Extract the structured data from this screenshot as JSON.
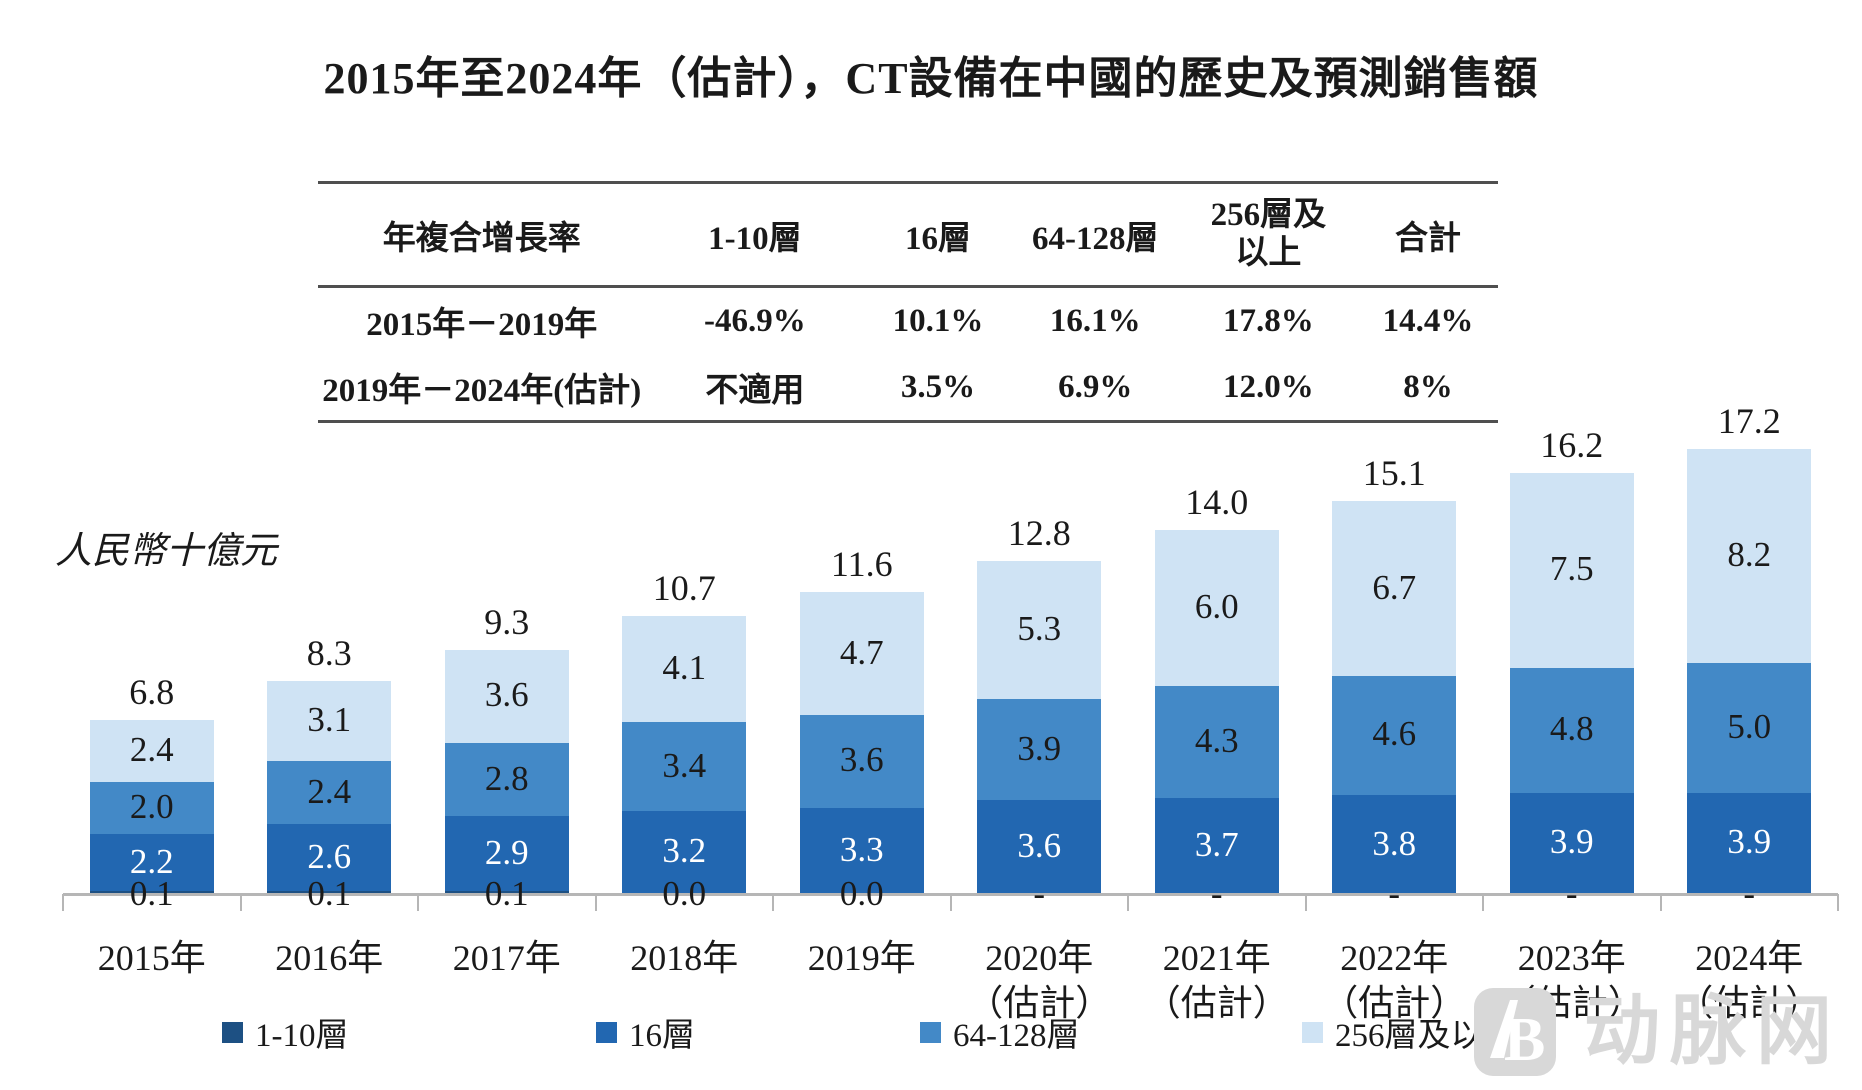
{
  "title": "2015年至2024年（估計），CT設備在中國的歷史及預測銷售額",
  "table": {
    "headers": [
      "年複合增長率",
      "1-10層",
      "16層",
      "64-128層",
      "256層及以上",
      "合計"
    ],
    "rows": [
      {
        "label": "2015年－2019年",
        "values": [
          "-46.9%",
          "10.1%",
          "16.1%",
          "17.8%",
          "14.4%"
        ]
      },
      {
        "label": "2019年－2024年(估計)",
        "values": [
          "不適用",
          "3.5%",
          "6.9%",
          "12.0%",
          "8%"
        ]
      }
    ]
  },
  "y_axis_label": "人民幣十億元",
  "chart_data": {
    "type": "bar",
    "stacked": true,
    "title": "2015年至2024年（估計），CT設備在中國的歷史及預測銷售額",
    "ylabel": "人民幣十億元",
    "ylim": [
      0,
      18
    ],
    "grid": false,
    "legend_position": "bottom",
    "categories": [
      "2015年",
      "2016年",
      "2017年",
      "2018年",
      "2019年",
      "2020年\n（估計）",
      "2021年\n（估計）",
      "2022年\n（估計）",
      "2023年\n（估計）",
      "2024年\n（估計）"
    ],
    "series": [
      {
        "name": "1-10層",
        "color": "#1d5083",
        "values": [
          0.1,
          0.1,
          0.1,
          0.0,
          0.0,
          null,
          null,
          null,
          null,
          null
        ],
        "labels": [
          "0.1",
          "0.1",
          "0.1",
          "0.0",
          "0.0",
          "-",
          "-",
          "-",
          "-",
          "-"
        ]
      },
      {
        "name": "16層",
        "color": "#2267b1",
        "values": [
          2.2,
          2.6,
          2.9,
          3.2,
          3.3,
          3.6,
          3.7,
          3.8,
          3.9,
          3.9
        ]
      },
      {
        "name": "64-128層",
        "color": "#4389c7",
        "values": [
          2.0,
          2.4,
          2.8,
          3.4,
          3.6,
          3.9,
          4.3,
          4.6,
          4.8,
          5.0
        ]
      },
      {
        "name": "256層及以上",
        "color": "#cfe3f4",
        "values": [
          2.4,
          3.1,
          3.6,
          4.1,
          4.7,
          5.3,
          6.0,
          6.7,
          7.5,
          8.2
        ]
      }
    ],
    "totals": [
      6.8,
      8.3,
      9.3,
      10.7,
      11.6,
      12.8,
      14.0,
      15.1,
      16.2,
      17.2
    ]
  },
  "colors": {
    "axis": "#b6b6b6",
    "table_line": "#4f4f4f",
    "text": "#1a1a1a",
    "watermark": "#d8d8d8"
  },
  "watermark": {
    "text": "动脉网"
  }
}
